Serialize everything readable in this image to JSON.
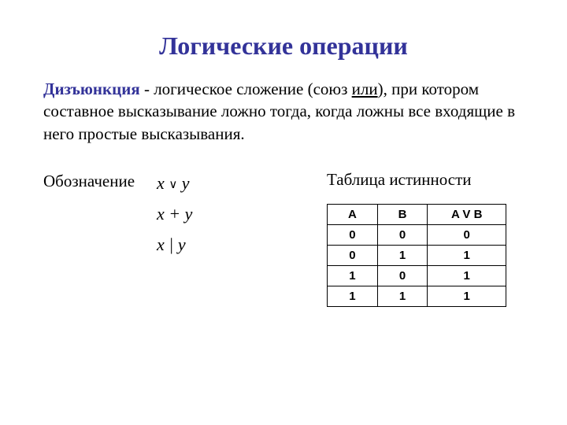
{
  "title": "Логические операции",
  "definition": {
    "term": "Дизъюнкция",
    "dash": " - ",
    "text1": "логическое сложение (союз ",
    "union": "или",
    "text2": "), при котором составное высказывание ложно тогда, когда ложны все входящие в него простые высказывания."
  },
  "notation": {
    "label": "Обозначение",
    "formulas": {
      "f1_left": "x",
      "f1_op": "∨",
      "f1_right": "y",
      "f2": "x + y",
      "f3": "x | y"
    }
  },
  "table": {
    "label": "Таблица истинности",
    "columns": [
      "A",
      "B",
      "A V B"
    ],
    "rows": [
      [
        "0",
        "0",
        "0"
      ],
      [
        "0",
        "1",
        "1"
      ],
      [
        "1",
        "0",
        "1"
      ],
      [
        "1",
        "1",
        "1"
      ]
    ]
  }
}
